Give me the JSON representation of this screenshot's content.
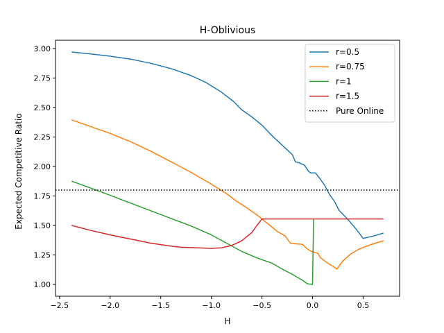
{
  "chart_data": {
    "type": "line",
    "title": "H-Oblivious",
    "xlabel": "H",
    "ylabel": "Expected Competitive Ratio",
    "xlim": [
      -2.54,
      0.86
    ],
    "ylim": [
      0.9,
      3.07
    ],
    "xticks": [
      -2.5,
      -2.0,
      -1.5,
      -1.0,
      -0.5,
      0.0,
      0.5
    ],
    "xtick_labels": [
      "−2.5",
      "−2.0",
      "−1.5",
      "−1.0",
      "−0.5",
      "0.0",
      "0.5"
    ],
    "yticks": [
      1.0,
      1.25,
      1.5,
      1.75,
      2.0,
      2.25,
      2.5,
      2.75,
      3.0
    ],
    "ytick_labels": [
      "1.00",
      "1.25",
      "1.50",
      "1.75",
      "2.00",
      "2.25",
      "2.50",
      "2.75",
      "3.00"
    ],
    "grid": false,
    "legend_position": "top-right",
    "series": [
      {
        "name": "r=0.5",
        "color": "#1f77b4",
        "style": "solid",
        "points": [
          [
            -2.38,
            2.97
          ],
          [
            -2.2,
            2.955
          ],
          [
            -2.0,
            2.935
          ],
          [
            -1.8,
            2.91
          ],
          [
            -1.6,
            2.875
          ],
          [
            -1.4,
            2.83
          ],
          [
            -1.2,
            2.77
          ],
          [
            -1.05,
            2.71
          ],
          [
            -0.9,
            2.63
          ],
          [
            -0.78,
            2.55
          ],
          [
            -0.7,
            2.48
          ],
          [
            -0.6,
            2.42
          ],
          [
            -0.5,
            2.35
          ],
          [
            -0.4,
            2.26
          ],
          [
            -0.3,
            2.18
          ],
          [
            -0.25,
            2.14
          ],
          [
            -0.2,
            2.1
          ],
          [
            -0.17,
            2.04
          ],
          [
            -0.13,
            2.03
          ],
          [
            -0.08,
            2.01
          ],
          [
            -0.04,
            1.96
          ],
          [
            -0.02,
            1.945
          ],
          [
            0.03,
            1.945
          ],
          [
            0.07,
            1.9
          ],
          [
            0.12,
            1.84
          ],
          [
            0.17,
            1.76
          ],
          [
            0.22,
            1.7
          ],
          [
            0.26,
            1.63
          ],
          [
            0.35,
            1.55
          ],
          [
            0.43,
            1.47
          ],
          [
            0.5,
            1.39
          ],
          [
            0.6,
            1.41
          ],
          [
            0.7,
            1.435
          ]
        ]
      },
      {
        "name": "r=0.75",
        "color": "#ff7f0e",
        "style": "solid",
        "points": [
          [
            -2.38,
            2.395
          ],
          [
            -2.2,
            2.34
          ],
          [
            -2.0,
            2.28
          ],
          [
            -1.8,
            2.21
          ],
          [
            -1.6,
            2.13
          ],
          [
            -1.4,
            2.04
          ],
          [
            -1.2,
            1.95
          ],
          [
            -1.0,
            1.85
          ],
          [
            -0.85,
            1.77
          ],
          [
            -0.75,
            1.705
          ],
          [
            -0.65,
            1.65
          ],
          [
            -0.55,
            1.59
          ],
          [
            -0.45,
            1.52
          ],
          [
            -0.35,
            1.45
          ],
          [
            -0.27,
            1.41
          ],
          [
            -0.22,
            1.35
          ],
          [
            -0.18,
            1.345
          ],
          [
            -0.1,
            1.34
          ],
          [
            -0.05,
            1.3
          ],
          [
            0.0,
            1.275
          ],
          [
            0.05,
            1.265
          ],
          [
            0.08,
            1.225
          ],
          [
            0.15,
            1.18
          ],
          [
            0.2,
            1.155
          ],
          [
            0.24,
            1.13
          ],
          [
            0.3,
            1.2
          ],
          [
            0.38,
            1.26
          ],
          [
            0.46,
            1.3
          ],
          [
            0.55,
            1.33
          ],
          [
            0.62,
            1.35
          ],
          [
            0.7,
            1.37
          ]
        ]
      },
      {
        "name": "r=1",
        "color": "#2ca02c",
        "style": "solid",
        "points": [
          [
            -2.38,
            1.875
          ],
          [
            -2.2,
            1.82
          ],
          [
            -2.0,
            1.755
          ],
          [
            -1.8,
            1.69
          ],
          [
            -1.6,
            1.625
          ],
          [
            -1.4,
            1.56
          ],
          [
            -1.2,
            1.495
          ],
          [
            -1.0,
            1.42
          ],
          [
            -0.85,
            1.35
          ],
          [
            -0.7,
            1.28
          ],
          [
            -0.55,
            1.225
          ],
          [
            -0.4,
            1.18
          ],
          [
            -0.3,
            1.13
          ],
          [
            -0.2,
            1.085
          ],
          [
            -0.1,
            1.035
          ],
          [
            -0.05,
            1.005
          ],
          [
            0.0,
            1.0
          ],
          [
            0.01,
            1.555
          ]
        ]
      },
      {
        "name": "r=1.5",
        "color": "#d62728",
        "style": "solid",
        "points": [
          [
            -2.38,
            1.5
          ],
          [
            -2.2,
            1.46
          ],
          [
            -2.0,
            1.42
          ],
          [
            -1.8,
            1.385
          ],
          [
            -1.6,
            1.35
          ],
          [
            -1.4,
            1.325
          ],
          [
            -1.3,
            1.315
          ],
          [
            -1.2,
            1.312
          ],
          [
            -1.0,
            1.306
          ],
          [
            -0.9,
            1.31
          ],
          [
            -0.8,
            1.33
          ],
          [
            -0.7,
            1.37
          ],
          [
            -0.6,
            1.44
          ],
          [
            -0.55,
            1.5
          ],
          [
            -0.5,
            1.555
          ],
          [
            0.0,
            1.555
          ],
          [
            0.5,
            1.555
          ],
          [
            0.7,
            1.555
          ]
        ]
      },
      {
        "name": "Pure Online",
        "color": "#000000",
        "style": "dotted",
        "points": [
          [
            -2.54,
            1.8
          ],
          [
            0.86,
            1.8
          ]
        ]
      }
    ]
  }
}
